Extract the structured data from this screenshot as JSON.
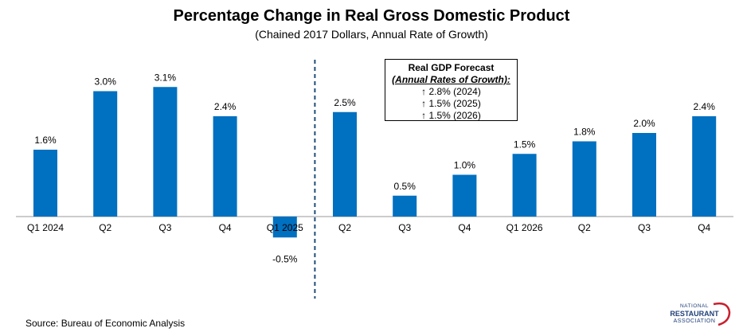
{
  "chart_data": {
    "type": "bar",
    "title": "Percentage Change in Real Gross Domestic Product",
    "subtitle": "(Chained 2017 Dollars, Annual Rate of Growth)",
    "xlabel": "",
    "ylabel": "",
    "categories": [
      "Q1 2024",
      "Q2",
      "Q3",
      "Q4",
      "Q1 2025",
      "Q2",
      "Q3",
      "Q4",
      "Q1 2026",
      "Q2",
      "Q3",
      "Q4"
    ],
    "values": [
      1.6,
      3.0,
      3.1,
      2.4,
      -0.5,
      2.5,
      0.5,
      1.0,
      1.5,
      1.8,
      2.0,
      2.4
    ],
    "data_labels": [
      "1.6%",
      "3.0%",
      "3.1%",
      "2.4%",
      "-0.5%",
      "2.5%",
      "0.5%",
      "1.0%",
      "1.5%",
      "1.8%",
      "2.0%",
      "2.4%"
    ],
    "bar_color": "#0070c0",
    "divider_after_category_index": 4,
    "gridlines": false
  },
  "forecast_box": {
    "title": "Real GDP Forecast",
    "subtitle": "(Annual Rates of Growth):",
    "lines": [
      "↑ 2.8% (2024)",
      "↑ 1.5% (2025)",
      "↑ 1.5% (2026)"
    ]
  },
  "source": "Source: Bureau of Economic Analysis",
  "logo": {
    "line1": "NATIONAL",
    "line2": "RESTAURANT",
    "line3": "ASSOCIATION",
    "color_navy": "#1f3f7a",
    "color_red": "#c8202f"
  }
}
